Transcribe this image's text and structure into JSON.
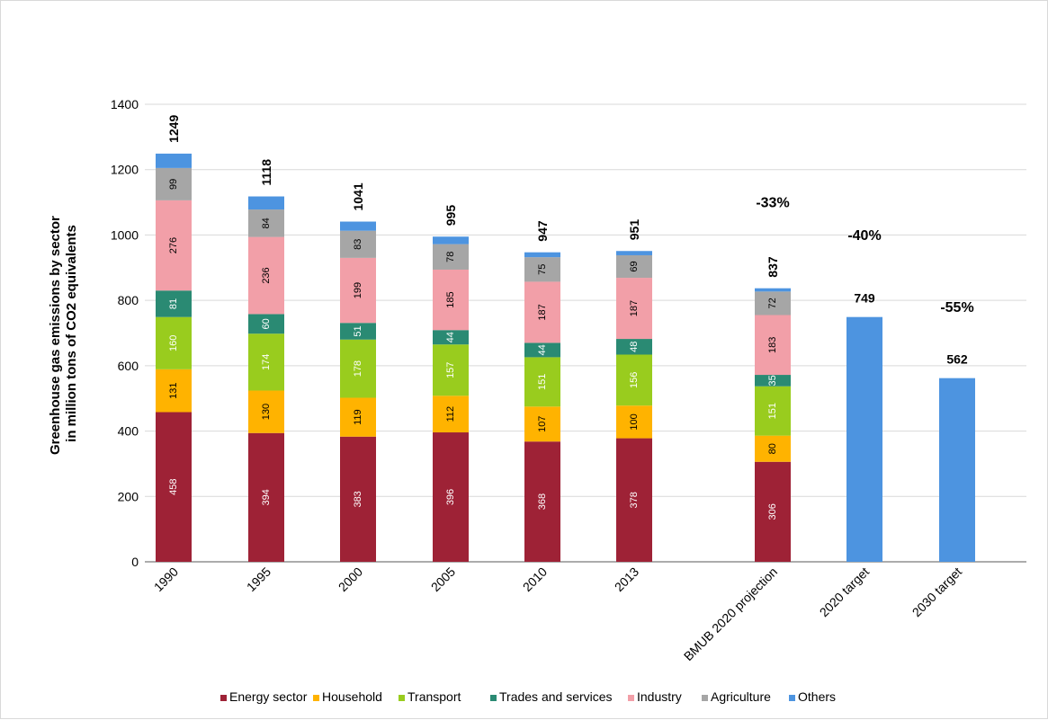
{
  "chart_data": {
    "type": "bar",
    "stacked": true,
    "categories": [
      "1990",
      "1995",
      "2000",
      "2005",
      "2010",
      "2013",
      "BMUB 2020 projection",
      "2020 target",
      "2030 target"
    ],
    "ylabel_lines": [
      "Greenhouse gas emissions by sector",
      "in million tons of CO2 equivalents"
    ],
    "ylim": [
      0,
      1400
    ],
    "yticks": [
      "0",
      "200",
      "400",
      "600",
      "800",
      "1000",
      "1200",
      "1400"
    ],
    "grid": true,
    "legend_position": "bottom",
    "series": [
      {
        "name": "Energy sector",
        "color": "#9E2236",
        "label_color": "light",
        "values": [
          458,
          394,
          383,
          396,
          368,
          378,
          306,
          null,
          null
        ],
        "labels": [
          "458",
          "394",
          "383",
          "396",
          "368",
          "378",
          "306",
          "",
          ""
        ]
      },
      {
        "name": "Household",
        "color": "#FFB300",
        "label_color": "dark",
        "values": [
          131,
          130,
          119,
          112,
          107,
          100,
          80,
          null,
          null
        ],
        "labels": [
          "131",
          "130",
          "119",
          "112",
          "107",
          "100",
          "80",
          "",
          ""
        ]
      },
      {
        "name": "Transport",
        "color": "#99CC1E",
        "label_color": "light",
        "values": [
          160,
          174,
          178,
          157,
          151,
          156,
          151,
          null,
          null
        ],
        "labels": [
          "160",
          "174",
          "178",
          "157",
          "151",
          "156",
          "151",
          "",
          ""
        ]
      },
      {
        "name": "Trades and services",
        "color": "#2A8A73",
        "label_color": "light",
        "values": [
          81,
          60,
          51,
          44,
          44,
          48,
          35,
          null,
          null
        ],
        "labels": [
          "81",
          "60",
          "51",
          "44",
          "44",
          "48",
          "35",
          "",
          ""
        ]
      },
      {
        "name": "Industry",
        "color": "#F29FA8",
        "label_color": "dark",
        "values": [
          276,
          236,
          199,
          185,
          187,
          187,
          183,
          null,
          null
        ],
        "labels": [
          "276",
          "236",
          "199",
          "185",
          "187",
          "187",
          "183",
          "",
          ""
        ]
      },
      {
        "name": "Agriculture",
        "color": "#A6A6A6",
        "label_color": "dark",
        "values": [
          99,
          84,
          83,
          78,
          75,
          69,
          72,
          null,
          null
        ],
        "labels": [
          "99",
          "84",
          "83",
          "78",
          "75",
          "69",
          "72",
          "",
          ""
        ]
      },
      {
        "name": "Others",
        "color": "#4D94E0",
        "label_color": "dark",
        "values": [
          44,
          40,
          28,
          23,
          15,
          13,
          10,
          749,
          562
        ],
        "labels": [
          "",
          "",
          "",
          "",
          "",
          "",
          "",
          "",
          ""
        ]
      }
    ],
    "totals": [
      "1249",
      "1118",
      "1041",
      "995",
      "947",
      "951",
      "837",
      "749",
      "562"
    ],
    "annotations": [
      {
        "category": "BMUB 2020 projection",
        "text": "-33%",
        "y": 1085
      },
      {
        "category": "2020 target",
        "text": "-40%",
        "y": 985
      },
      {
        "category": "2030 target",
        "text": "-55%",
        "y": 765
      }
    ]
  }
}
